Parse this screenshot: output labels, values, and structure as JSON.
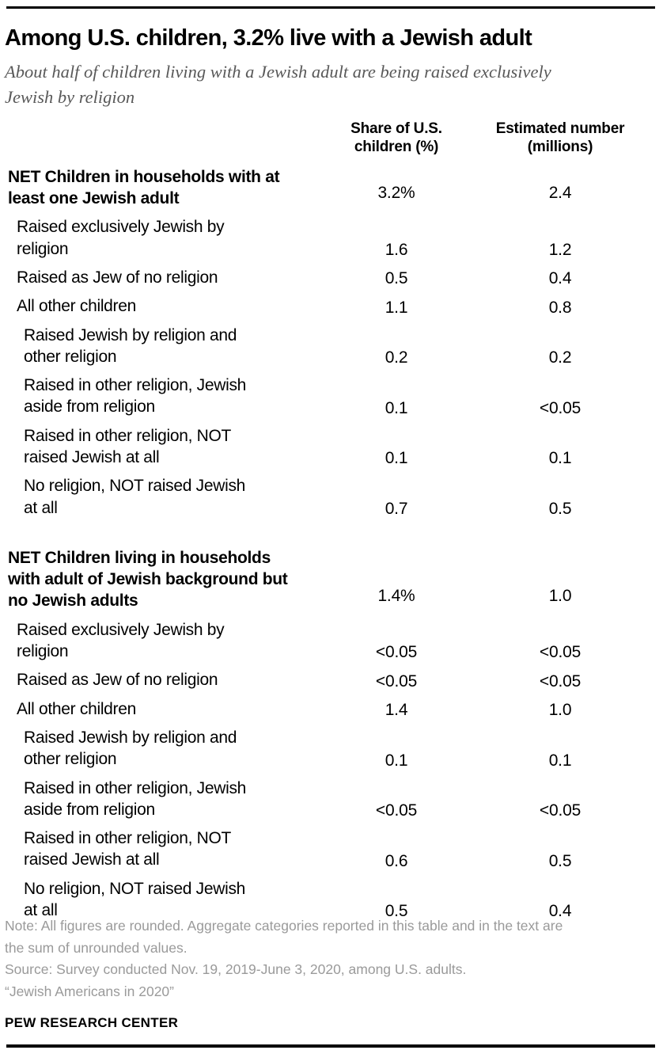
{
  "chart_data": {
    "type": "table",
    "title": "Among U.S. children, 3.2% live with a Jewish adult",
    "subtitle": "About half of children living with a Jewish adult are being raised exclusively\nJewish by religion",
    "columns": [
      "Share of U.S.\nchildren (%)",
      "Estimated number\n(millions)"
    ],
    "rows": [
      {
        "label": "NET Children in households with at\nleast one Jewish adult",
        "level": 0,
        "net": true,
        "section_start": false,
        "share": "3.2%",
        "number": "2.4"
      },
      {
        "label": "Raised exclusively Jewish by\nreligion",
        "level": 1,
        "net": false,
        "section_start": false,
        "share": "1.6",
        "number": "1.2"
      },
      {
        "label": "Raised as Jew of no religion",
        "level": 1,
        "net": false,
        "section_start": false,
        "share": "0.5",
        "number": "0.4"
      },
      {
        "label": "All other children",
        "level": 1,
        "net": false,
        "section_start": false,
        "share": "1.1",
        "number": "0.8"
      },
      {
        "label": "Raised Jewish by religion and\nother religion",
        "level": 2,
        "net": false,
        "section_start": false,
        "share": "0.2",
        "number": "0.2"
      },
      {
        "label": "Raised in other religion, Jewish\naside from religion",
        "level": 2,
        "net": false,
        "section_start": false,
        "share": "0.1",
        "number": "<0.05"
      },
      {
        "label": "Raised in other religion, NOT\nraised Jewish at all",
        "level": 2,
        "net": false,
        "section_start": false,
        "share": "0.1",
        "number": "0.1"
      },
      {
        "label": "No religion, NOT raised Jewish\nat all",
        "level": 2,
        "net": false,
        "section_start": false,
        "share": "0.7",
        "number": "0.5"
      },
      {
        "label": "NET Children living in households\nwith adult of Jewish background but\nno Jewish adults",
        "level": 0,
        "net": true,
        "section_start": true,
        "share": "1.4%",
        "number": "1.0"
      },
      {
        "label": "Raised exclusively Jewish by\nreligion",
        "level": 1,
        "net": false,
        "section_start": false,
        "share": "<0.05",
        "number": "<0.05"
      },
      {
        "label": "Raised as Jew of no religion",
        "level": 1,
        "net": false,
        "section_start": false,
        "share": "<0.05",
        "number": "<0.05"
      },
      {
        "label": "All other children",
        "level": 1,
        "net": false,
        "section_start": false,
        "share": "1.4",
        "number": "1.0"
      },
      {
        "label": "Raised Jewish by religion and\nother religion",
        "level": 2,
        "net": false,
        "section_start": false,
        "share": "0.1",
        "number": "0.1"
      },
      {
        "label": "Raised in other religion, Jewish\naside from religion",
        "level": 2,
        "net": false,
        "section_start": false,
        "share": "<0.05",
        "number": "<0.05"
      },
      {
        "label": "Raised in other religion, NOT\nraised Jewish at all",
        "level": 2,
        "net": false,
        "section_start": false,
        "share": "0.6",
        "number": "0.5"
      },
      {
        "label": "No religion, NOT raised Jewish\nat all",
        "level": 2,
        "net": false,
        "section_start": false,
        "share": "0.5",
        "number": "0.4"
      }
    ]
  },
  "footer": {
    "note": "Note: All figures are rounded. Aggregate categories reported in this table and in the text are\nthe sum of unrounded values.",
    "source": "Source: Survey conducted Nov. 19, 2019-June 3, 2020, among U.S. adults.",
    "citation": "“Jewish Americans in 2020”",
    "brand": "PEW RESEARCH CENTER"
  },
  "colors": {
    "rule": "#000000",
    "subtitle_gray": "#595959",
    "note_gray": "#9a9a9a",
    "text": "#000000"
  }
}
